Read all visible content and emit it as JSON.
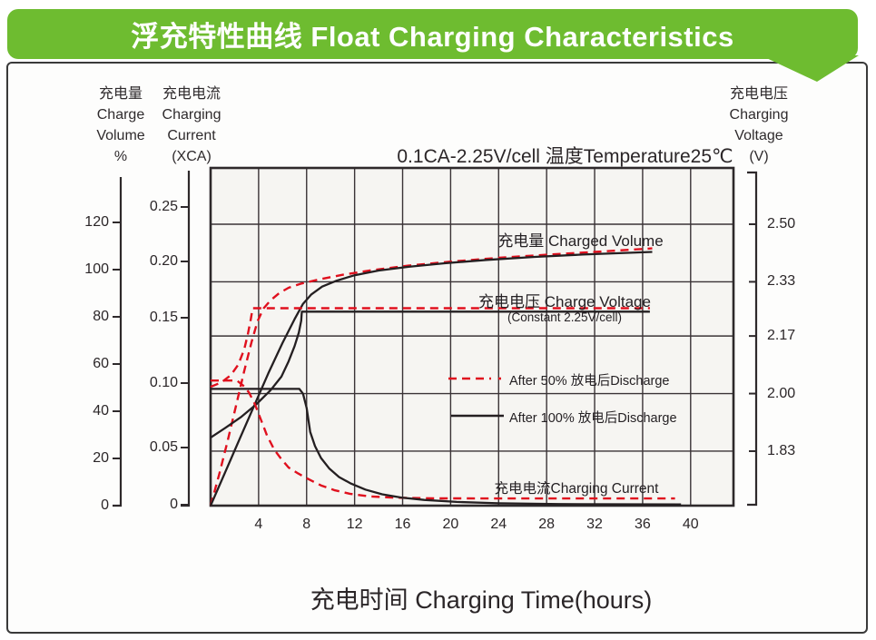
{
  "banner": {
    "title": "浮充特性曲线  Float Charging Characteristics",
    "color": "#6ebc30"
  },
  "chart_title": "0.1CA-2.25V/cell  温度Temperature25℃",
  "axes": {
    "left_volume": {
      "header_lines": [
        "充电量",
        "Charge",
        "Volume",
        "%"
      ],
      "ticks": [
        "0",
        "20",
        "40",
        "60",
        "80",
        "100",
        "120"
      ]
    },
    "left_current": {
      "header_lines": [
        "充电电流",
        "Charging",
        "Current",
        "(XCA)"
      ],
      "ticks": [
        "0",
        "0.05",
        "0.10",
        "0.15",
        "0.20",
        "0.25"
      ]
    },
    "right_voltage": {
      "header_lines": [
        "充电电压",
        "Charging",
        "Voltage",
        "(V)"
      ],
      "ticks": [
        "2.50",
        "2.33",
        "2.17",
        "2.00",
        "1.83"
      ]
    },
    "x_hours": {
      "ticks": [
        "4",
        "8",
        "12",
        "16",
        "20",
        "24",
        "28",
        "32",
        "36",
        "40"
      ],
      "title": "充电时间  Charging Time(hours)"
    }
  },
  "annotations": {
    "charged_volume": "充电量 Charged Volume",
    "charge_voltage": "充电电压 Charge Voltage",
    "charge_voltage_note": "(Constant 2.25V/cell)",
    "charging_current": "充电电流Charging Current"
  },
  "legend": [
    {
      "label": "After 50% 放电后Discharge",
      "style": "dashed",
      "color": "#e0101e"
    },
    {
      "label": "After 100% 放电后Discharge",
      "style": "solid",
      "color": "#241f21"
    }
  ],
  "colors": {
    "after_50_discharge": "#e0101e",
    "after_100_discharge": "#241f21",
    "grid": "#3a3336",
    "plot_background": "#f6f5f2",
    "banner_green": "#6ebc30"
  },
  "chart_data": {
    "type": "line",
    "title": "0.1CA-2.25V/cell 温度Temperature25℃",
    "xlabel": "充电时间 Charging Time(hours)",
    "x_unit": "hours",
    "x_ticks": [
      4,
      8,
      12,
      16,
      20,
      24,
      28,
      32,
      36,
      40
    ],
    "x_range": [
      0,
      43.5
    ],
    "grid": true,
    "axes_info": {
      "charge_volume_pct": {
        "label": "充电量 Charge Volume %",
        "ticks": [
          0,
          20,
          40,
          60,
          80,
          100,
          120
        ]
      },
      "charging_current_CA": {
        "label": "充电电流 Charging Current (XCA)",
        "ticks": [
          0,
          0.05,
          0.1,
          0.15,
          0.2,
          0.25
        ]
      },
      "charging_voltage_V": {
        "label": "充电电压 Charging Voltage (V)",
        "ticks": [
          2.5,
          2.33,
          2.17,
          2.0,
          1.83
        ]
      }
    },
    "conditions": "0.1CA-2.25V/cell, Temperature 25°C",
    "series": [
      {
        "id": "volume_after_50",
        "name": "Charged Volume after 50% discharge",
        "axis": "charge_volume_pct",
        "dash": true,
        "points": [
          [
            0,
            0
          ],
          [
            0.7,
            13
          ],
          [
            1.4,
            27
          ],
          [
            2.1,
            42
          ],
          [
            2.8,
            57
          ],
          [
            3.4,
            69
          ],
          [
            3.9,
            78
          ],
          [
            4.4,
            83.5
          ],
          [
            5,
            87
          ],
          [
            5.7,
            90
          ],
          [
            6.5,
            92.3
          ],
          [
            7.5,
            94
          ],
          [
            9,
            95.8
          ],
          [
            11,
            97.8
          ],
          [
            13.5,
            99.8
          ],
          [
            16.5,
            101.7
          ],
          [
            20,
            103.4
          ],
          [
            24,
            105
          ],
          [
            28,
            106.3
          ],
          [
            32,
            107.5
          ],
          [
            36.8,
            109
          ]
        ]
      },
      {
        "id": "volume_after_100",
        "name": "Charged Volume after 100% discharge",
        "axis": "charge_volume_pct",
        "dash": false,
        "points": [
          [
            0,
            0
          ],
          [
            1.2,
            14
          ],
          [
            2.4,
            28
          ],
          [
            3.6,
            42
          ],
          [
            4.8,
            56
          ],
          [
            6,
            69
          ],
          [
            7,
            79
          ],
          [
            7.7,
            85.5
          ],
          [
            8.4,
            89.5
          ],
          [
            9.3,
            92.8
          ],
          [
            10.5,
            95.3
          ],
          [
            12,
            97.6
          ],
          [
            14,
            99.6
          ],
          [
            16.5,
            101.2
          ],
          [
            19.5,
            102.7
          ],
          [
            23,
            104.1
          ],
          [
            27,
            105.4
          ],
          [
            31,
            106.4
          ],
          [
            36.8,
            107.5
          ]
        ]
      },
      {
        "id": "voltage_after_50",
        "name": "Charge Voltage after 50% discharge",
        "axis": "charging_voltage_V",
        "dash": true,
        "points": [
          [
            0,
            2.02
          ],
          [
            0.9,
            2.033
          ],
          [
            1.7,
            2.055
          ],
          [
            2.3,
            2.085
          ],
          [
            2.8,
            2.13
          ],
          [
            3.1,
            2.175
          ],
          [
            3.35,
            2.22
          ],
          [
            3.5,
            2.252
          ],
          [
            36.6,
            2.252
          ]
        ]
      },
      {
        "id": "voltage_after_100",
        "name": "Charge Voltage after 100% discharge (constant 2.25 V/cell)",
        "axis": "charging_voltage_V",
        "dash": false,
        "points": [
          [
            0,
            1.87
          ],
          [
            1.2,
            1.898
          ],
          [
            2.5,
            1.93
          ],
          [
            3.8,
            1.968
          ],
          [
            5,
            2.01
          ],
          [
            5.9,
            2.05
          ],
          [
            6.5,
            2.095
          ],
          [
            7,
            2.14
          ],
          [
            7.35,
            2.18
          ],
          [
            7.55,
            2.215
          ],
          [
            7.6,
            2.242
          ],
          [
            36.6,
            2.242
          ]
        ]
      },
      {
        "id": "current_after_50",
        "name": "Charging Current after 50% discharge",
        "axis": "charging_current_CA",
        "dash": true,
        "points": [
          [
            0,
            0.105
          ],
          [
            2.2,
            0.105
          ],
          [
            2.7,
            0.101
          ],
          [
            3.2,
            0.095
          ],
          [
            3.7,
            0.085
          ],
          [
            4.2,
            0.072
          ],
          [
            4.7,
            0.059
          ],
          [
            5.3,
            0.047
          ],
          [
            5.9,
            0.039
          ],
          [
            6.5,
            0.032
          ],
          [
            7.3,
            0.027
          ],
          [
            8.2,
            0.022
          ],
          [
            9.2,
            0.017
          ],
          [
            10.3,
            0.013
          ],
          [
            11.6,
            0.01
          ],
          [
            13.2,
            0.0078
          ],
          [
            15.5,
            0.0066
          ],
          [
            19,
            0.0061
          ],
          [
            38.7,
            0.006
          ]
        ]
      },
      {
        "id": "current_after_100",
        "name": "Charging Current after 100% discharge",
        "axis": "charging_current_CA",
        "dash": false,
        "points": [
          [
            0,
            0.098
          ],
          [
            7.4,
            0.098
          ],
          [
            7.7,
            0.094
          ],
          [
            8,
            0.082
          ],
          [
            8.3,
            0.062
          ],
          [
            8.7,
            0.05
          ],
          [
            9.2,
            0.04
          ],
          [
            9.9,
            0.031
          ],
          [
            10.7,
            0.024
          ],
          [
            11.7,
            0.0185
          ],
          [
            12.9,
            0.0135
          ],
          [
            14.3,
            0.0095
          ],
          [
            15.9,
            0.0068
          ],
          [
            17.8,
            0.0048
          ],
          [
            20.5,
            0.0031
          ],
          [
            24,
            0.002
          ],
          [
            29,
            0.0013
          ],
          [
            39.2,
            0.001
          ]
        ]
      }
    ]
  }
}
